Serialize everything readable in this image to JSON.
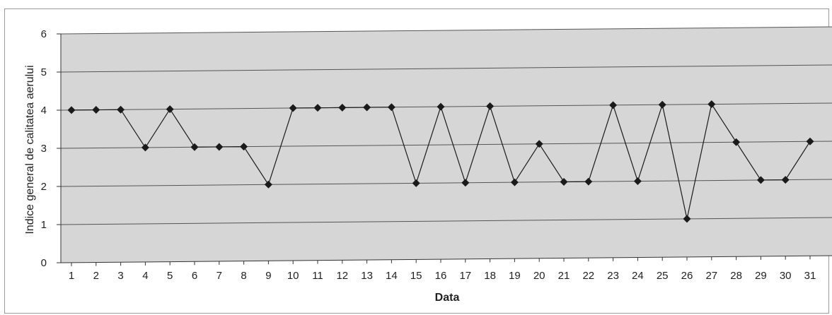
{
  "chart_data": {
    "type": "line",
    "title": "",
    "xlabel": "Data",
    "ylabel": "Indice general de calitatea aerului",
    "ylim": [
      0,
      6
    ],
    "yticks": [
      "0",
      "1",
      "2",
      "3",
      "4",
      "5",
      "6"
    ],
    "grid": true,
    "legend": "none",
    "categories": [
      "1",
      "2",
      "3",
      "4",
      "5",
      "6",
      "7",
      "8",
      "9",
      "10",
      "11",
      "12",
      "13",
      "14",
      "15",
      "16",
      "17",
      "18",
      "19",
      "20",
      "21",
      "22",
      "23",
      "24",
      "25",
      "26",
      "27",
      "28",
      "29",
      "30",
      "31"
    ],
    "series": [
      {
        "values": [
          4,
          4,
          4,
          3,
          4,
          3,
          3,
          3,
          2,
          4,
          4,
          4,
          4,
          4,
          2,
          4,
          2,
          4,
          2,
          3,
          2,
          2,
          4,
          2,
          4,
          1,
          4,
          3,
          2,
          2,
          3
        ],
        "color": "#1a1a1a",
        "marker": "diamond"
      }
    ],
    "colors": {
      "plot_background": "#d6d6d6",
      "gridline": "#555555",
      "line": "#1a1a1a"
    }
  }
}
